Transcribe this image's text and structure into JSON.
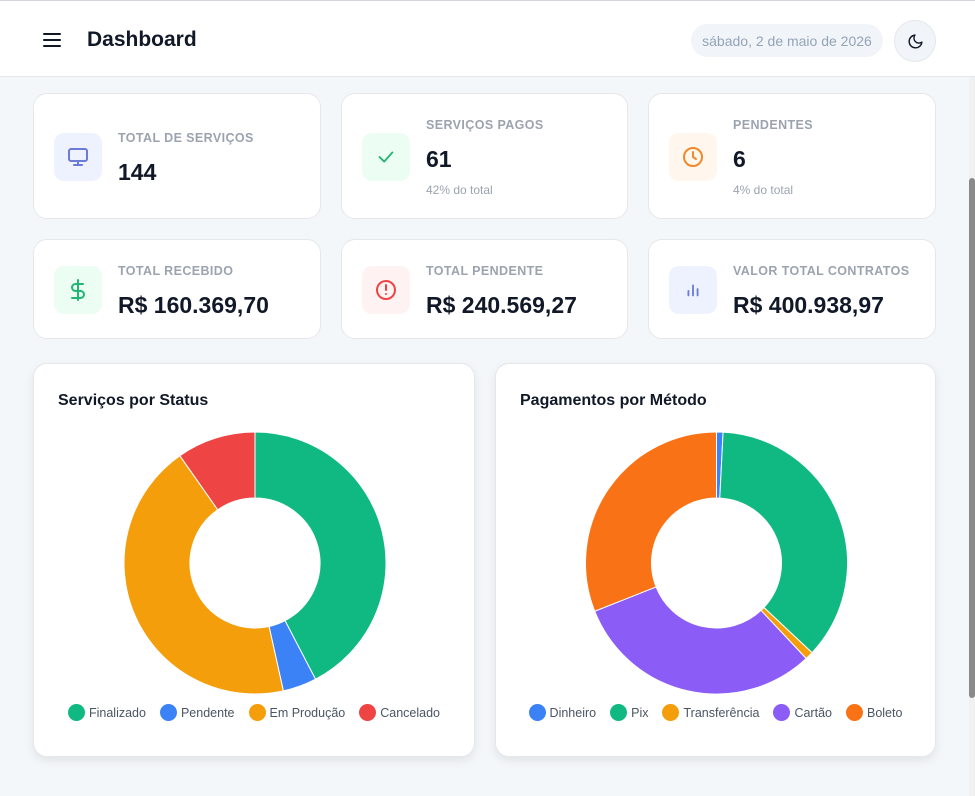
{
  "header": {
    "title": "Dashboard",
    "date": "sábado, 2 de maio de 2026",
    "menu_icon": "menu-icon",
    "theme_icon": "moon-icon"
  },
  "stats": [
    {
      "label": "TOTAL DE SERVIÇOS",
      "value": "144",
      "sub": "",
      "icon": "monitor-icon",
      "color": "#6b7bd6",
      "bg": "#eef2ff"
    },
    {
      "label": "SERVIÇOS PAGOS",
      "value": "61",
      "sub": "42% do total",
      "icon": "check-icon",
      "color": "#22b573",
      "bg": "#ecfdf3"
    },
    {
      "label": "PENDENTES",
      "value": "6",
      "sub": "4% do total",
      "icon": "clock-icon",
      "color": "#f0892b",
      "bg": "#fff7ed"
    },
    {
      "label": "TOTAL RECEBIDO",
      "value": "R$ 160.369,70",
      "sub": "",
      "icon": "dollar-icon",
      "color": "#22b573",
      "bg": "#ecfdf3"
    },
    {
      "label": "TOTAL PENDENTE",
      "value": "R$ 240.569,27",
      "sub": "",
      "icon": "alert-circle-icon",
      "color": "#ef4444",
      "bg": "#fef2f2"
    },
    {
      "label": "VALOR TOTAL CONTRATOS",
      "value": "R$ 400.938,97",
      "sub": "",
      "icon": "bar-chart-icon",
      "color": "#6b7bd6",
      "bg": "#eef2ff"
    }
  ],
  "chart_data": [
    {
      "type": "pie",
      "title": "Serviços por Status",
      "categories": [
        "Finalizado",
        "Pendente",
        "Em Produção",
        "Cancelado"
      ],
      "values": [
        61,
        6,
        63,
        14
      ],
      "colors": [
        "#10b981",
        "#3b82f6",
        "#f59e0b",
        "#ef4444"
      ]
    },
    {
      "type": "pie",
      "title": "Pagamentos por Método",
      "categories": [
        "Dinheiro",
        "Pix",
        "Transferência",
        "Cartão",
        "Boleto"
      ],
      "values": [
        0.8,
        36.2,
        1.0,
        31.0,
        31.0
      ],
      "colors": [
        "#3b82f6",
        "#10b981",
        "#f59e0b",
        "#8b5cf6",
        "#f97316"
      ]
    }
  ]
}
